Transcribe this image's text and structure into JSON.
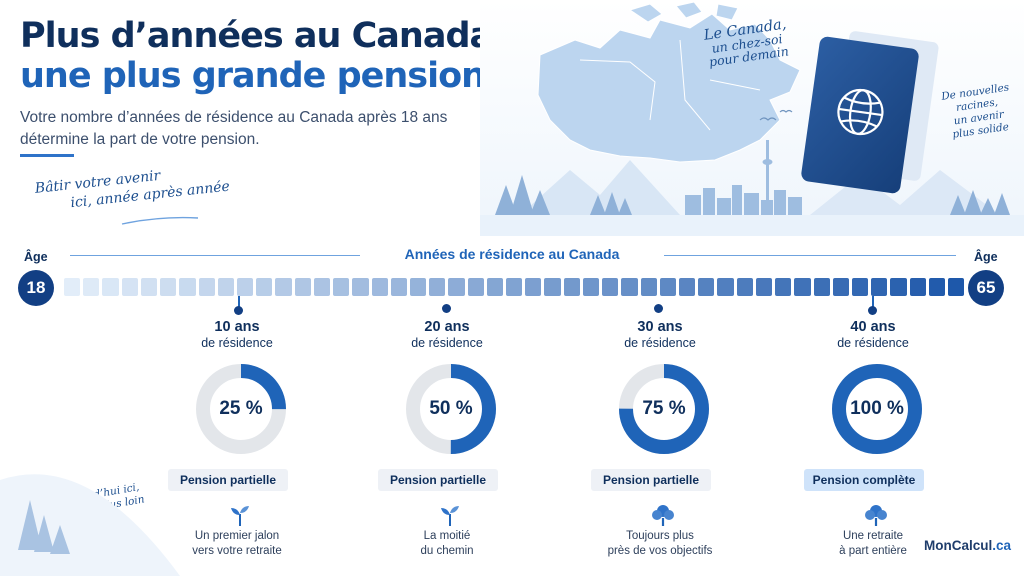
{
  "header": {
    "title_line1": "Plus d’années au Canada,",
    "title_line2": "une plus grande pension",
    "subtitle": "Votre nombre d’années de résidence au Canada après 18 ans détermine la part de votre pension."
  },
  "script_notes": {
    "left_line1": "Bâtir votre avenir",
    "left_line2": "ici, année après année",
    "top_line1": "Le Canada,",
    "top_line2": "un chez-soi",
    "top_line3": "pour demain",
    "right_line1": "De nouvelles",
    "right_line2": "racines,",
    "right_line3": "un avenir",
    "right_line4": "plus solide",
    "bottom_line1": "Aujourd’hui ici,",
    "bottom_line2": "demain plus loin"
  },
  "timeline": {
    "label": "Années de résidence au Canada",
    "start_age_label": "Âge",
    "start_age": "18",
    "end_age_label": "Âge",
    "end_age": "65",
    "total_years": 47
  },
  "milestones": [
    {
      "years": "10 ans",
      "sub": "de résidence",
      "percent_label": "25 %",
      "percent": 25,
      "badge": "Pension partielle",
      "desc_line1": "Un premier jalon",
      "desc_line2": "vers votre retraite",
      "icon": "sprout-icon",
      "full": false
    },
    {
      "years": "20 ans",
      "sub": "de résidence",
      "percent_label": "50 %",
      "percent": 50,
      "badge": "Pension partielle",
      "desc_line1": "La moitié",
      "desc_line2": "du chemin",
      "icon": "sprout-icon",
      "full": false
    },
    {
      "years": "30 ans",
      "sub": "de résidence",
      "percent_label": "75 %",
      "percent": 75,
      "badge": "Pension partielle",
      "desc_line1": "Toujours plus",
      "desc_line2": "près de vos objectifs",
      "icon": "tree-icon",
      "full": false
    },
    {
      "years": "40 ans",
      "sub": "de résidence",
      "percent_label": "100 %",
      "percent": 100,
      "badge": "Pension complète",
      "desc_line1": "Une retraite",
      "desc_line2": "à part entière",
      "icon": "tree-icon",
      "full": true
    }
  ],
  "brand": {
    "name": "MonCalcul",
    "tld": ".ca"
  },
  "colors": {
    "navy": "#0f2f5c",
    "accent_blue": "#1f64b8",
    "ring_track": "#e3e6ea",
    "badge_full": "#cfe3fa"
  }
}
